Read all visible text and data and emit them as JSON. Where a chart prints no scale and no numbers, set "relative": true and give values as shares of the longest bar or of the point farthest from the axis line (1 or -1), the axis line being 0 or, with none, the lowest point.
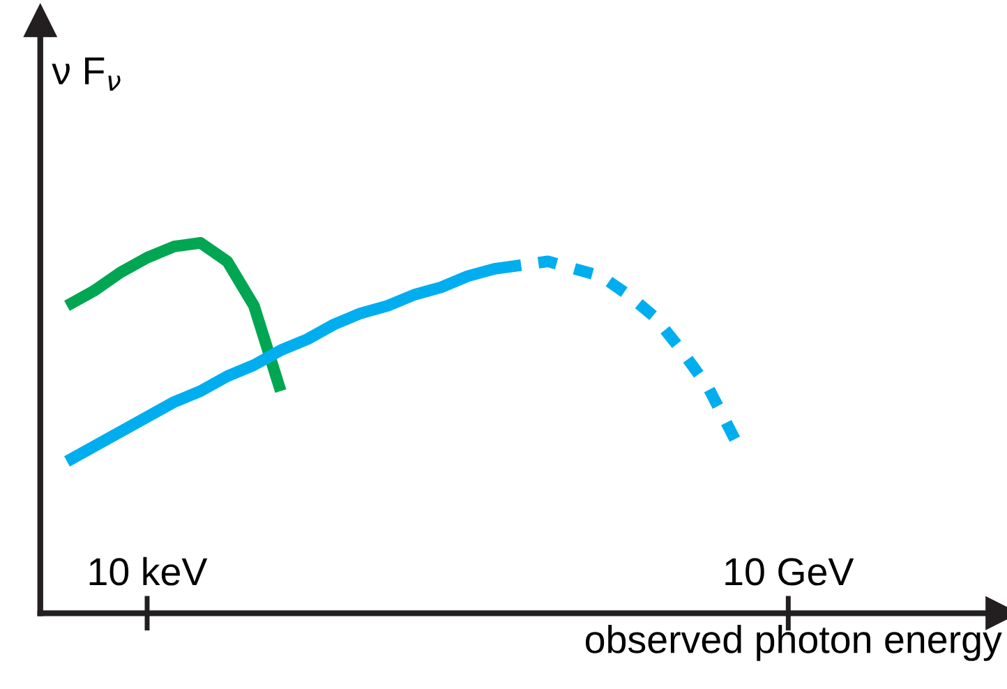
{
  "chart_data": {
    "type": "line",
    "relative": true,
    "xlabel": "observed photon energy",
    "ylabel": "ν F$_{ν}$",
    "categories": [
      null,
      null,
      null,
      null,
      "10 keV",
      null,
      null,
      null,
      null,
      null,
      null,
      null,
      null,
      null,
      null,
      null,
      null,
      null,
      null,
      null,
      null,
      null,
      null,
      null,
      null,
      null,
      null,
      null,
      "10 GeV",
      null,
      null,
      null,
      null,
      null,
      null,
      null,
      null
    ],
    "grid": false,
    "marker": "none",
    "series": [
      {
        "color": "#00a651",
        "line_style": "solid",
        "values": [
          null,
          0.83,
          0.87,
          0.92,
          0.96,
          0.99,
          1,
          0.95,
          0.83,
          0.6,
          null,
          null,
          null,
          null,
          null,
          null,
          null,
          null,
          null,
          null,
          null,
          null,
          null,
          null,
          null,
          null,
          null,
          null,
          null,
          null,
          null,
          null,
          null,
          null,
          null,
          null,
          null
        ]
      },
      {
        "color": "#00aeef",
        "line_style": "solid",
        "values": [
          null,
          0.41,
          0.45,
          0.49,
          0.53,
          0.57,
          0.6,
          0.64,
          0.67,
          0.71,
          0.74,
          0.78,
          0.81,
          0.83,
          0.86,
          0.88,
          0.91,
          0.93,
          0.94,
          null,
          null,
          null,
          null,
          null,
          null,
          null,
          null,
          null,
          null,
          null,
          null,
          null,
          null,
          null,
          null,
          null,
          null
        ]
      },
      {
        "color": "#00aeef",
        "line_style": "dashed",
        "values": [
          null,
          null,
          null,
          null,
          null,
          null,
          null,
          null,
          null,
          null,
          null,
          null,
          null,
          null,
          null,
          null,
          null,
          null,
          0.94,
          0.95,
          0.93,
          0.91,
          0.86,
          0.8,
          0.71,
          0.61,
          0.47,
          null,
          null,
          null,
          null,
          null,
          null,
          null,
          null,
          null,
          null
        ]
      }
    ]
  }
}
